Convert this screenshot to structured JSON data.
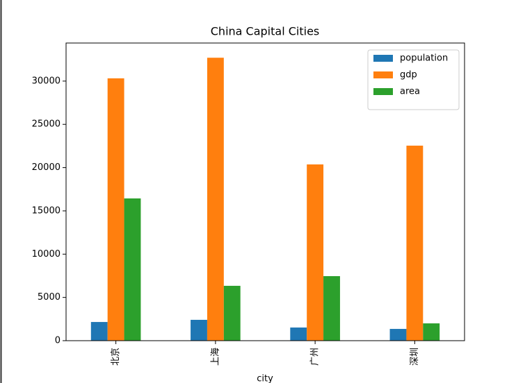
{
  "chart_data": {
    "type": "bar",
    "title": "China Capital Cities",
    "x_label": "city",
    "categories": [
      "北京",
      "上海",
      "广州",
      "深圳"
    ],
    "series": [
      {
        "name": "population",
        "color": "#1f77b4",
        "values": [
          2160,
          2410,
          1520,
          1360
        ]
      },
      {
        "name": "gdp",
        "color": "#ff7f0e",
        "values": [
          30320,
          32700,
          20370,
          22540
        ]
      },
      {
        "name": "area",
        "color": "#2ca02c",
        "values": [
          16440,
          6340,
          7460,
          2000
        ]
      }
    ],
    "ylim": [
      0,
      34400
    ],
    "yticks": [
      0,
      5000,
      10000,
      15000,
      20000,
      25000,
      30000
    ],
    "legend": "upper right"
  }
}
